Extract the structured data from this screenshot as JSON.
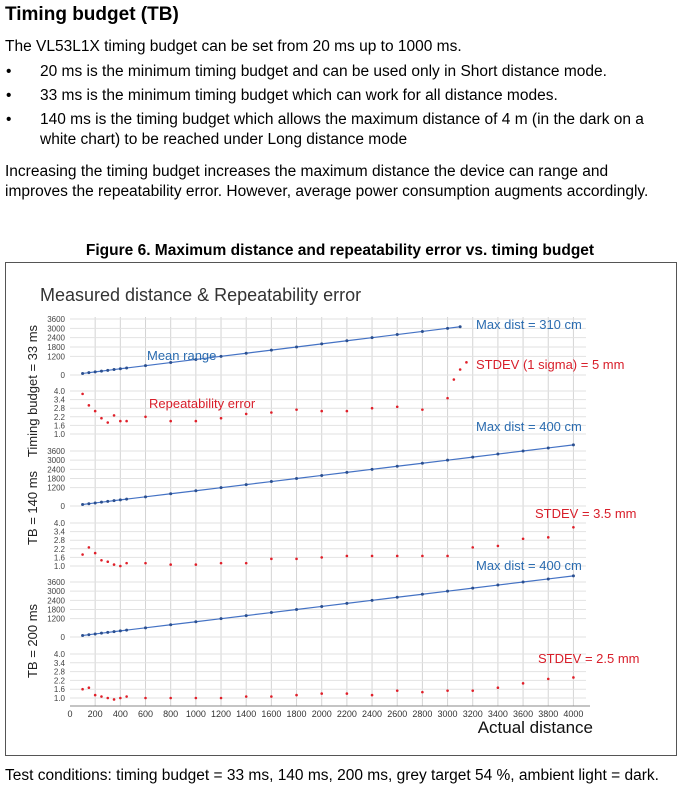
{
  "doc": {
    "heading": "Timing budget (TB)",
    "intro": "The VL53L1X timing budget can be set from 20 ms up to 1000 ms.",
    "bullets": [
      "20 ms is the minimum timing budget and can be used only in Short distance mode.",
      "33 ms is the minimum timing budget which can work for all distance modes.",
      "140 ms is the timing budget which allows the maximum distance of 4 m (in the dark on a white chart) to be reached under Long distance mode"
    ],
    "paragraph": "Increasing the timing budget increases the maximum distance the device can range and improves the repeatability error. However, average power consumption augments accordingly.",
    "figure_caption": "Figure 6. Maximum distance and repeatability error vs. timing budget",
    "footer": "Test conditions: timing budget = 33 ms, 140 ms, 200 ms, grey target 54 %, ambient light = dark."
  },
  "chart_data": {
    "type": "scatter",
    "title": "Measured distance & Repeatability error",
    "xlabel": "Actual distance",
    "x_ticks": [
      0,
      200,
      400,
      600,
      800,
      1000,
      1200,
      1400,
      1600,
      1800,
      2000,
      2200,
      2400,
      2600,
      2800,
      3000,
      3200,
      3400,
      3600,
      3800,
      4000
    ],
    "xlim": [
      0,
      4100
    ],
    "grid": true,
    "colors": {
      "range": "#4472c4",
      "error": "#e0202a"
    },
    "panels": [
      {
        "ylabel": "Timing budget = 33 ms",
        "range_ticks": [
          0,
          1200,
          1800,
          2400,
          3000,
          3600
        ],
        "error_ticks": [
          1.0,
          1.6,
          2.2,
          2.8,
          3.4,
          4.0
        ],
        "annotations": {
          "max_dist": "Max dist = 310 cm",
          "stdev": "STDEV (1 sigma) = 5 mm",
          "range_label": "Mean range",
          "error_label": "Repeatability error"
        },
        "range_series": {
          "x": [
            100,
            150,
            200,
            250,
            300,
            350,
            400,
            450,
            600,
            800,
            1000,
            1200,
            1400,
            1600,
            1800,
            2000,
            2200,
            2400,
            2600,
            2800,
            3000,
            3100
          ],
          "y": [
            100,
            150,
            200,
            250,
            300,
            350,
            400,
            450,
            600,
            800,
            1000,
            1200,
            1400,
            1600,
            1800,
            2000,
            2200,
            2400,
            2600,
            2800,
            3000,
            3100
          ]
        },
        "error_series": {
          "x": [
            100,
            150,
            200,
            250,
            300,
            350,
            400,
            450,
            600,
            800,
            1000,
            1200,
            1400,
            1600,
            1800,
            2000,
            2200,
            2400,
            2600,
            2800,
            3000,
            3050,
            3100,
            3150
          ],
          "y": [
            3.8,
            3.0,
            2.6,
            2.1,
            1.8,
            2.3,
            1.9,
            1.9,
            2.2,
            1.9,
            1.9,
            2.1,
            2.4,
            2.5,
            2.7,
            2.6,
            2.6,
            2.8,
            2.9,
            2.7,
            3.5,
            4.8,
            5.5,
            6.0
          ]
        }
      },
      {
        "ylabel": "TB = 140 ms",
        "range_ticks": [
          0,
          1200,
          1800,
          2400,
          3000,
          3600
        ],
        "error_ticks": [
          1.0,
          1.6,
          2.2,
          2.8,
          3.4,
          4.0
        ],
        "annotations": {
          "max_dist": "Max dist = 400 cm",
          "stdev": "STDEV = 3.5 mm"
        },
        "range_series": {
          "x": [
            100,
            150,
            200,
            250,
            300,
            350,
            400,
            450,
            600,
            800,
            1000,
            1200,
            1400,
            1600,
            1800,
            2000,
            2200,
            2400,
            2600,
            2800,
            3000,
            3200,
            3400,
            3600,
            3800,
            4000
          ],
          "y": [
            100,
            150,
            200,
            250,
            300,
            350,
            400,
            450,
            600,
            800,
            1000,
            1200,
            1400,
            1600,
            1800,
            2000,
            2200,
            2400,
            2600,
            2800,
            3000,
            3200,
            3400,
            3600,
            3800,
            4000
          ]
        },
        "error_series": {
          "x": [
            100,
            150,
            200,
            250,
            300,
            350,
            400,
            450,
            600,
            800,
            1000,
            1200,
            1400,
            1600,
            1800,
            2000,
            2200,
            2400,
            2600,
            2800,
            3000,
            3200,
            3400,
            3600,
            3800,
            4000
          ],
          "y": [
            1.8,
            2.3,
            1.9,
            1.4,
            1.3,
            1.1,
            1.0,
            1.2,
            1.2,
            1.1,
            1.1,
            1.2,
            1.2,
            1.5,
            1.5,
            1.6,
            1.7,
            1.7,
            1.7,
            1.7,
            1.7,
            2.3,
            2.4,
            2.9,
            3.0,
            3.7
          ]
        }
      },
      {
        "ylabel": "TB = 200 ms",
        "range_ticks": [
          0,
          1200,
          1800,
          2400,
          3000,
          3600
        ],
        "error_ticks": [
          1.0,
          1.6,
          2.2,
          2.8,
          3.4,
          4.0
        ],
        "annotations": {
          "max_dist": "Max dist = 400 cm",
          "stdev": "STDEV =  2.5 mm"
        },
        "range_series": {
          "x": [
            100,
            150,
            200,
            250,
            300,
            350,
            400,
            450,
            600,
            800,
            1000,
            1200,
            1400,
            1600,
            1800,
            2000,
            2200,
            2400,
            2600,
            2800,
            3000,
            3200,
            3400,
            3600,
            3800,
            4000
          ],
          "y": [
            100,
            150,
            200,
            250,
            300,
            350,
            400,
            450,
            600,
            800,
            1000,
            1200,
            1400,
            1600,
            1800,
            2000,
            2200,
            2400,
            2600,
            2800,
            3000,
            3200,
            3400,
            3600,
            3800,
            4000
          ]
        },
        "error_series": {
          "x": [
            100,
            150,
            200,
            250,
            300,
            350,
            400,
            450,
            600,
            800,
            1000,
            1200,
            1400,
            1600,
            1800,
            2000,
            2200,
            2400,
            2600,
            2800,
            3000,
            3200,
            3400,
            3600,
            3800,
            4000
          ],
          "y": [
            1.6,
            1.7,
            1.2,
            1.1,
            1.0,
            0.9,
            1.0,
            1.1,
            1.0,
            1.0,
            1.0,
            1.0,
            1.1,
            1.1,
            1.2,
            1.3,
            1.3,
            1.2,
            1.5,
            1.4,
            1.5,
            1.5,
            1.7,
            2.0,
            2.3,
            2.4
          ]
        }
      }
    ]
  }
}
